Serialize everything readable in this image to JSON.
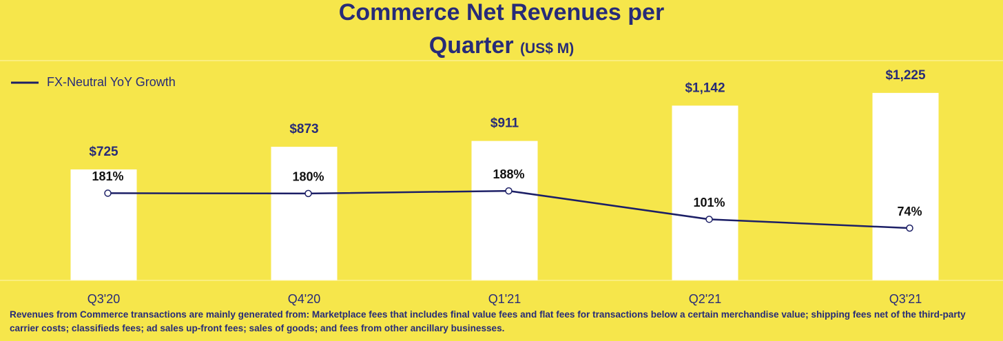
{
  "chart_data": {
    "type": "bar",
    "title": "Commerce Net Revenues per Quarter",
    "subtitle": "(US$ M)",
    "categories": [
      "Q3'20",
      "Q4'20",
      "Q1'21",
      "Q2'21",
      "Q3'21"
    ],
    "series": [
      {
        "type": "bar",
        "color": "#ffffff",
        "values": [
          725,
          873,
          911,
          1142,
          1225
        ],
        "value_labels": [
          "$725",
          "$873",
          "$911",
          "$1,142",
          "$1,225"
        ]
      },
      {
        "name": "FX-Neutral YoY Growth",
        "type": "line",
        "axis": "y2",
        "color": "#1c1f66",
        "values": [
          181,
          180,
          188,
          101,
          74
        ],
        "value_labels": [
          "181%",
          "180%",
          "188%",
          "101%",
          "74%"
        ]
      }
    ],
    "ylim": [
      0,
      1400
    ],
    "y2lim": [
      -86,
      570
    ],
    "legend": "upper left"
  },
  "footnote": "Revenues from Commerce transactions are mainly generated from: Marketplace fees that includes final value fees and flat fees for transactions below a certain merchandise value; shipping fees net of the third-party carrier costs; classifieds fees; ad sales up-front fees; sales of goods; and fees from other ancillary businesses."
}
